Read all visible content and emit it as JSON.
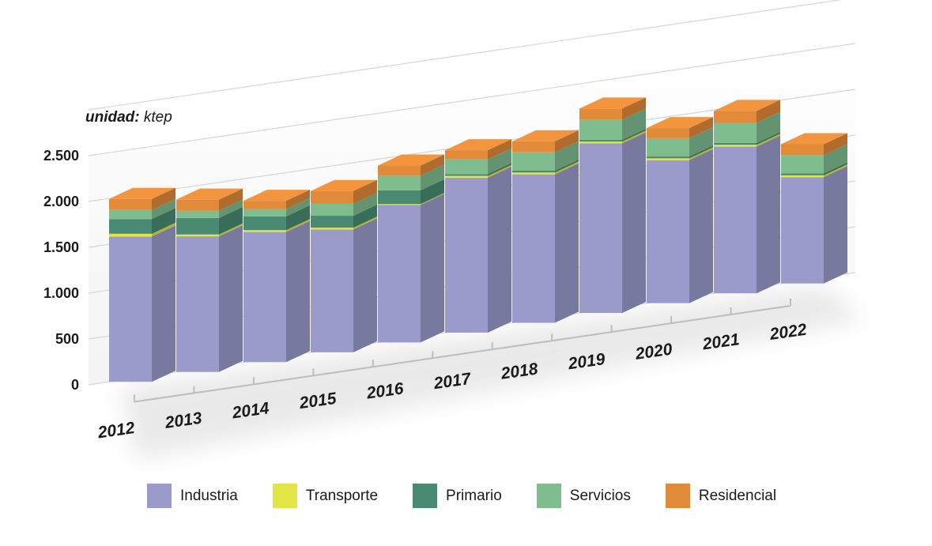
{
  "unit": {
    "prefix": "unidad:",
    "value": "ktep"
  },
  "legend": [
    {
      "name": "Industria",
      "color": "#9a9bcb"
    },
    {
      "name": "Transporte",
      "color": "#e3e547"
    },
    {
      "name": "Primario",
      "color": "#4a8a73"
    },
    {
      "name": "Servicios",
      "color": "#7fbd8f"
    },
    {
      "name": "Residencial",
      "color": "#e18a39"
    }
  ],
  "chart_data": {
    "type": "bar",
    "stacked": true,
    "title": "",
    "xlabel": "",
    "ylabel": "",
    "ylim": [
      0,
      2500
    ],
    "yticks": [
      0,
      500,
      1000,
      1500,
      2000,
      2500
    ],
    "ytick_labels": [
      "0",
      "500",
      "1.000",
      "1.500",
      "2.000",
      "2.500"
    ],
    "grid": true,
    "legend_position": "bottom",
    "categories": [
      "2012",
      "2013",
      "2014",
      "2015",
      "2016",
      "2017",
      "2018",
      "2019",
      "2020",
      "2021",
      "2022"
    ],
    "series": [
      {
        "name": "Industria",
        "values": [
          1585,
          1480,
          1420,
          1340,
          1500,
          1690,
          1620,
          1850,
          1560,
          1600,
          1160
        ]
      },
      {
        "name": "Transporte",
        "values": [
          30,
          20,
          20,
          20,
          10,
          20,
          20,
          20,
          20,
          20,
          20
        ]
      },
      {
        "name": "Primario",
        "values": [
          160,
          180,
          150,
          130,
          150,
          20,
          20,
          20,
          20,
          20,
          20
        ]
      },
      {
        "name": "Servicios",
        "values": [
          100,
          80,
          80,
          130,
          160,
          160,
          200,
          220,
          200,
          220,
          200
        ]
      },
      {
        "name": "Residencial",
        "values": [
          120,
          120,
          90,
          140,
          110,
          100,
          120,
          120,
          110,
          130,
          120
        ]
      }
    ]
  }
}
